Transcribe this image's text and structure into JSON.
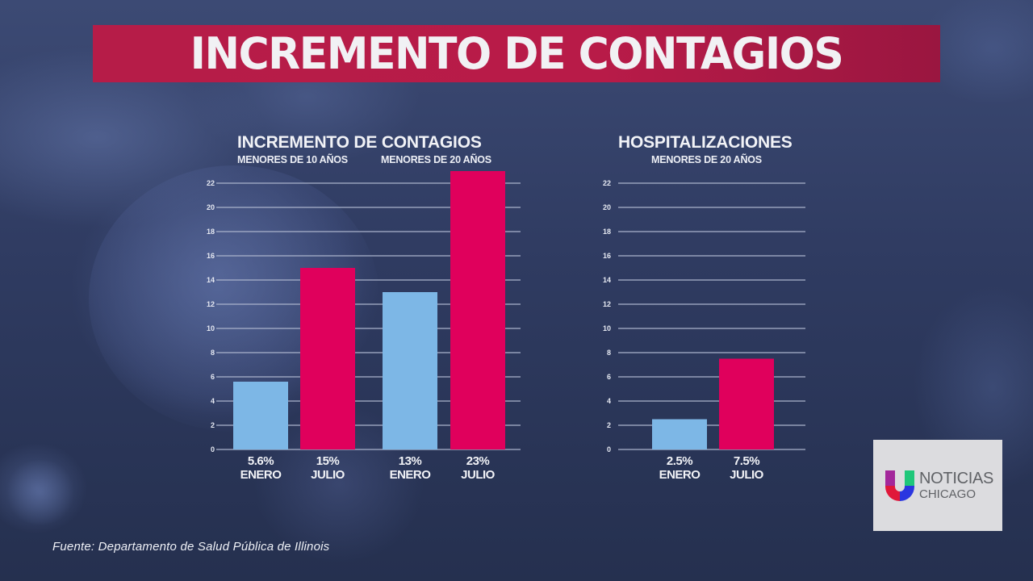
{
  "banner": {
    "title": "INCREMENTO DE CONTAGIOS"
  },
  "colors": {
    "enero": "#7db7e6",
    "julio": "#e0005c",
    "banner": "#b61c48",
    "gridline": "#aab3cc"
  },
  "chart_data": [
    {
      "type": "bar",
      "title": "INCREMENTO DE CONTAGIOS",
      "groups": [
        "MENORES DE 10 AÑOS",
        "MENORES DE 20 AÑOS"
      ],
      "categories": [
        "ENERO",
        "JULIO",
        "ENERO",
        "JULIO"
      ],
      "group_index": [
        0,
        0,
        1,
        1
      ],
      "values": [
        5.6,
        15,
        13,
        23
      ],
      "value_labels": [
        "5.6%",
        "15%",
        "13%",
        "23%"
      ],
      "series_colors": [
        "enero",
        "julio",
        "enero",
        "julio"
      ],
      "yticks": [
        0,
        2,
        4,
        6,
        8,
        10,
        12,
        14,
        16,
        18,
        20,
        22
      ],
      "ylim": [
        0,
        22
      ],
      "xlabel": "",
      "ylabel": "",
      "grid": true
    },
    {
      "type": "bar",
      "title": "HOSPITALIZACIONES",
      "subtitle": "MENORES DE 20 AÑOS",
      "categories": [
        "ENERO",
        "JULIO"
      ],
      "values": [
        2.5,
        7.5
      ],
      "value_labels": [
        "2.5%",
        "7.5%"
      ],
      "series_colors": [
        "enero",
        "julio"
      ],
      "yticks": [
        0,
        2,
        4,
        6,
        8,
        10,
        12,
        14,
        16,
        18,
        20,
        22
      ],
      "ylim": [
        0,
        22
      ],
      "xlabel": "",
      "ylabel": "",
      "grid": true
    }
  ],
  "source": "Fuente: Departamento de Salud Pública de Illinois",
  "logo": {
    "line1": "NOTICIAS",
    "line2": "CHICAGO"
  }
}
